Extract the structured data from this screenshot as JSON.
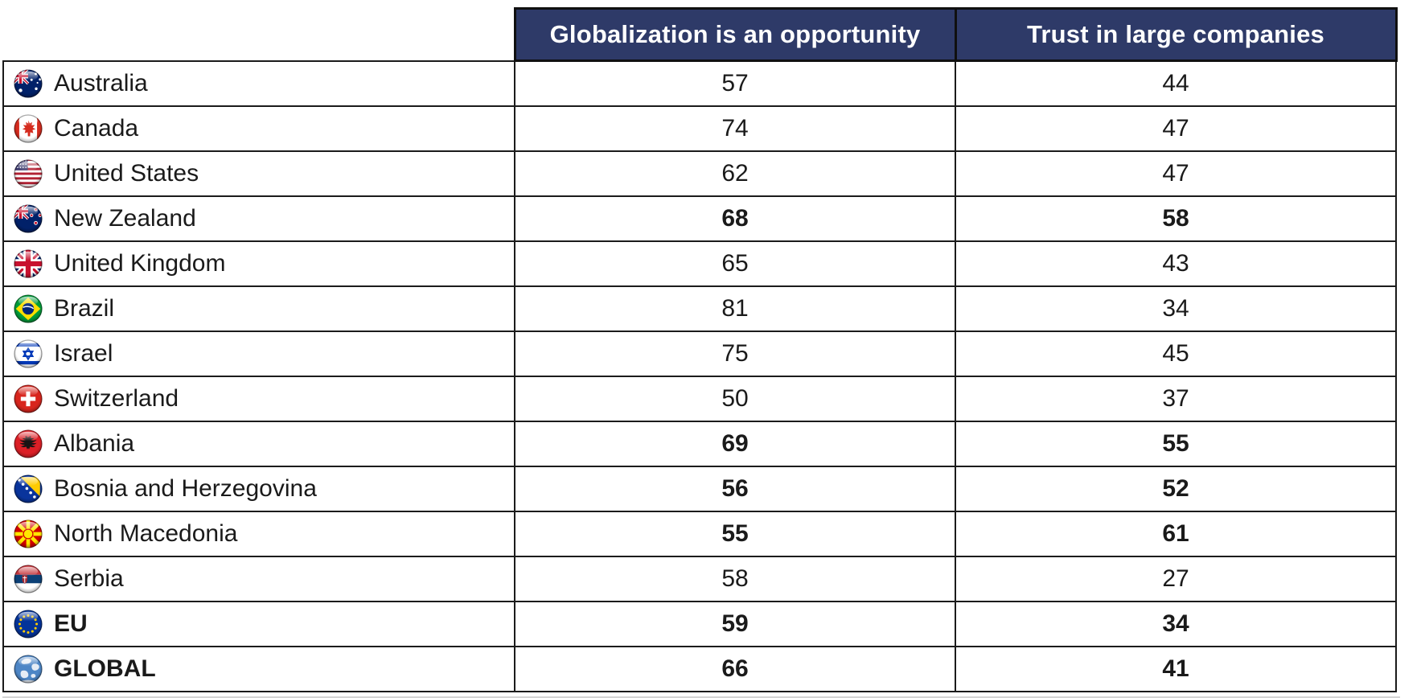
{
  "table": {
    "columns": [
      {
        "label": "Globalization is an opportunity"
      },
      {
        "label": "Trust in large companies"
      }
    ],
    "rows": [
      {
        "country": "Australia",
        "flag": "flag-australia",
        "values": [
          57,
          44
        ],
        "bold_values": false,
        "bold_name": false
      },
      {
        "country": "Canada",
        "flag": "flag-canada",
        "values": [
          74,
          47
        ],
        "bold_values": false,
        "bold_name": false
      },
      {
        "country": "United States",
        "flag": "flag-united-states",
        "values": [
          62,
          47
        ],
        "bold_values": false,
        "bold_name": false
      },
      {
        "country": "New Zealand",
        "flag": "flag-new-zealand",
        "values": [
          68,
          58
        ],
        "bold_values": true,
        "bold_name": false
      },
      {
        "country": "United Kingdom",
        "flag": "flag-united-kingdom",
        "values": [
          65,
          43
        ],
        "bold_values": false,
        "bold_name": false
      },
      {
        "country": "Brazil",
        "flag": "flag-brazil",
        "values": [
          81,
          34
        ],
        "bold_values": false,
        "bold_name": false
      },
      {
        "country": "Israel",
        "flag": "flag-israel",
        "values": [
          75,
          45
        ],
        "bold_values": false,
        "bold_name": false
      },
      {
        "country": "Switzerland",
        "flag": "flag-switzerland",
        "values": [
          50,
          37
        ],
        "bold_values": false,
        "bold_name": false
      },
      {
        "country": "Albania",
        "flag": "flag-albania",
        "values": [
          69,
          55
        ],
        "bold_values": true,
        "bold_name": false
      },
      {
        "country": "Bosnia and Herzegovina",
        "flag": "flag-bosnia",
        "values": [
          56,
          52
        ],
        "bold_values": true,
        "bold_name": false
      },
      {
        "country": "North Macedonia",
        "flag": "flag-north-macedonia",
        "values": [
          55,
          61
        ],
        "bold_values": true,
        "bold_name": false
      },
      {
        "country": "Serbia",
        "flag": "flag-serbia",
        "values": [
          58,
          27
        ],
        "bold_values": false,
        "bold_name": false
      },
      {
        "country": "EU",
        "flag": "flag-eu",
        "values": [
          59,
          34
        ],
        "bold_values": true,
        "bold_name": true
      },
      {
        "country": "GLOBAL",
        "flag": "flag-global",
        "values": [
          66,
          41
        ],
        "bold_values": true,
        "bold_name": true
      }
    ]
  },
  "colors": {
    "header_bg": "#2e3a68",
    "header_text": "#ffffff",
    "border": "#1b1b1b",
    "text": "#1a1a1a"
  },
  "chart_data": {
    "type": "table",
    "categories": [
      "Australia",
      "Canada",
      "United States",
      "New Zealand",
      "United Kingdom",
      "Brazil",
      "Israel",
      "Switzerland",
      "Albania",
      "Bosnia and Herzegovina",
      "North Macedonia",
      "Serbia",
      "EU",
      "GLOBAL"
    ],
    "series": [
      {
        "name": "Globalization is an opportunity",
        "values": [
          57,
          74,
          62,
          68,
          65,
          81,
          75,
          50,
          69,
          56,
          55,
          58,
          59,
          66
        ]
      },
      {
        "name": "Trust in large companies",
        "values": [
          44,
          47,
          47,
          58,
          43,
          34,
          45,
          37,
          55,
          52,
          61,
          27,
          34,
          41
        ]
      }
    ],
    "bold_rows": [
      "New Zealand",
      "Albania",
      "Bosnia and Herzegovina",
      "North Macedonia",
      "EU",
      "GLOBAL"
    ],
    "title": "",
    "layout": "two-column comparison table with country flag icons; bolded rows highlighted"
  }
}
